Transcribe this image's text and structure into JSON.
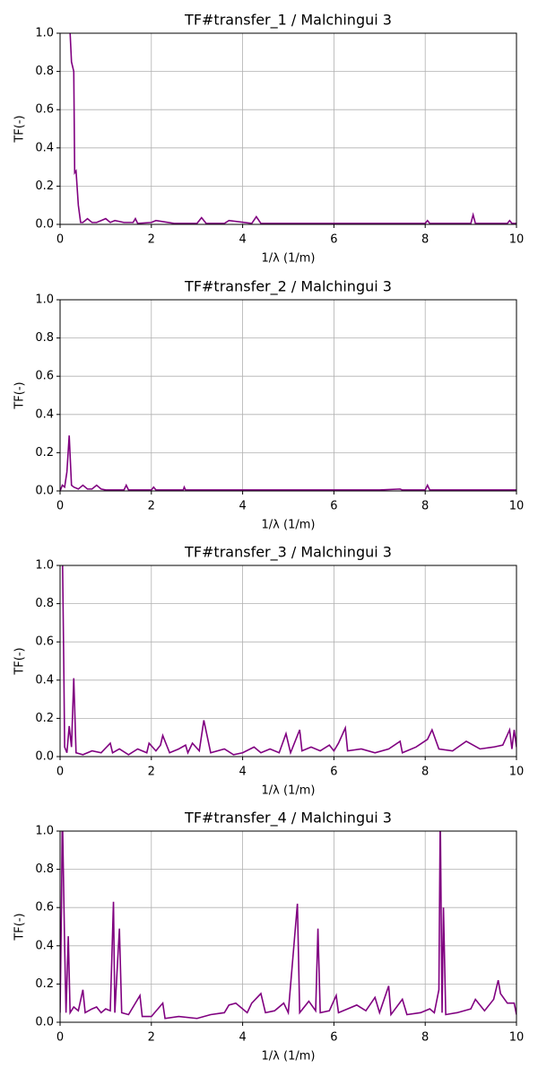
{
  "chart_data": [
    {
      "type": "line",
      "title": "TF#transfer_1 / Malchingui 3",
      "xlabel": "1/λ (1/m)",
      "ylabel": "TF(-)",
      "xlim": [
        0,
        10
      ],
      "ylim": [
        0,
        1
      ],
      "xticks": [
        0,
        2,
        4,
        6,
        8,
        10
      ],
      "yticks": [
        {
          "value": 0,
          "label": "0.0"
        },
        {
          "value": 0.2,
          "label": "0.2"
        },
        {
          "value": 0.4,
          "label": "0.4"
        },
        {
          "value": 0.6,
          "label": "0.6"
        },
        {
          "value": 0.8,
          "label": "0.8"
        },
        {
          "value": 1,
          "label": "1.0"
        }
      ],
      "grid": true,
      "x": [
        0.2,
        0.25,
        0.3,
        0.32,
        0.35,
        0.4,
        0.45,
        0.5,
        0.6,
        0.7,
        0.8,
        0.9,
        1.0,
        1.1,
        1.2,
        1.4,
        1.6,
        1.65,
        1.7,
        2.0,
        2.1,
        2.5,
        3.0,
        3.1,
        3.2,
        3.6,
        3.7,
        4.2,
        4.3,
        4.4,
        5.0,
        6.0,
        7.0,
        8.0,
        8.05,
        8.1,
        9.0,
        9.05,
        9.1,
        9.8,
        9.85,
        9.9,
        10.0
      ],
      "series": [
        {
          "color": "#800080",
          "values": [
            1.1,
            0.85,
            0.8,
            0.27,
            0.28,
            0.1,
            0.01,
            0.01,
            0.03,
            0.01,
            0.01,
            0.02,
            0.03,
            0.01,
            0.02,
            0.01,
            0.01,
            0.03,
            0.005,
            0.01,
            0.02,
            0.005,
            0.005,
            0.035,
            0.005,
            0.005,
            0.02,
            0.005,
            0.04,
            0.005,
            0.005,
            0.005,
            0.005,
            0.005,
            0.02,
            0.005,
            0.005,
            0.05,
            0.005,
            0.005,
            0.02,
            0.005,
            0.005
          ]
        }
      ]
    },
    {
      "type": "line",
      "title": "TF#transfer_2 / Malchingui 3",
      "xlabel": "1/λ (1/m)",
      "ylabel": "TF(-)",
      "xlim": [
        0,
        10
      ],
      "ylim": [
        0,
        1
      ],
      "xticks": [
        0,
        2,
        4,
        6,
        8,
        10
      ],
      "yticks": [
        {
          "value": 0,
          "label": "0.0"
        },
        {
          "value": 0.2,
          "label": "0.2"
        },
        {
          "value": 0.4,
          "label": "0.4"
        },
        {
          "value": 0.6,
          "label": "0.6"
        },
        {
          "value": 0.8,
          "label": "0.8"
        },
        {
          "value": 1,
          "label": "1.0"
        }
      ],
      "grid": true,
      "x": [
        0,
        0.05,
        0.1,
        0.15,
        0.2,
        0.25,
        0.3,
        0.4,
        0.5,
        0.6,
        0.7,
        0.8,
        0.9,
        1.0,
        1.4,
        1.45,
        1.5,
        2.0,
        2.05,
        2.1,
        2.7,
        2.72,
        2.75,
        3.5,
        4.5,
        5.0,
        6.0,
        7.0,
        7.45,
        7.5,
        8.0,
        8.05,
        8.1,
        9.0,
        10.0
      ],
      "series": [
        {
          "color": "#800080",
          "values": [
            0,
            0.03,
            0.02,
            0.1,
            0.29,
            0.03,
            0.02,
            0.01,
            0.03,
            0.01,
            0.01,
            0.03,
            0.01,
            0.005,
            0.005,
            0.03,
            0.005,
            0.005,
            0.02,
            0.005,
            0.005,
            0.02,
            0.005,
            0.005,
            0.005,
            0.005,
            0.005,
            0.005,
            0.01,
            0.005,
            0.005,
            0.03,
            0.005,
            0.005,
            0.005
          ]
        }
      ]
    },
    {
      "type": "line",
      "title": "TF#transfer_3 / Malchingui 3",
      "xlabel": "1/λ (1/m)",
      "ylabel": "TF(-)",
      "xlim": [
        0,
        10
      ],
      "ylim": [
        0,
        1
      ],
      "xticks": [
        0,
        2,
        4,
        6,
        8,
        10
      ],
      "yticks": [
        {
          "value": 0,
          "label": "0.0"
        },
        {
          "value": 0.2,
          "label": "0.2"
        },
        {
          "value": 0.4,
          "label": "0.4"
        },
        {
          "value": 0.6,
          "label": "0.6"
        },
        {
          "value": 0.8,
          "label": "0.8"
        },
        {
          "value": 1,
          "label": "1.0"
        }
      ],
      "grid": true,
      "x": [
        0.05,
        0.08,
        0.1,
        0.15,
        0.2,
        0.25,
        0.3,
        0.35,
        0.5,
        0.7,
        0.9,
        1.1,
        1.15,
        1.3,
        1.5,
        1.7,
        1.9,
        1.95,
        2.1,
        2.2,
        2.25,
        2.4,
        2.6,
        2.75,
        2.8,
        2.9,
        3.05,
        3.15,
        3.3,
        3.6,
        3.8,
        4.0,
        4.25,
        4.4,
        4.6,
        4.8,
        4.95,
        5.05,
        5.25,
        5.3,
        5.5,
        5.7,
        5.9,
        6.0,
        6.1,
        6.25,
        6.3,
        6.6,
        6.9,
        7.2,
        7.45,
        7.5,
        7.8,
        8.05,
        8.15,
        8.3,
        8.6,
        8.9,
        9.2,
        9.5,
        9.7,
        9.85,
        9.9,
        9.95,
        10.0
      ],
      "series": [
        {
          "color": "#800080",
          "values": [
            1.1,
            0.5,
            0.05,
            0.02,
            0.16,
            0.05,
            0.41,
            0.02,
            0.01,
            0.03,
            0.02,
            0.07,
            0.02,
            0.04,
            0.01,
            0.04,
            0.02,
            0.07,
            0.03,
            0.06,
            0.11,
            0.02,
            0.04,
            0.06,
            0.02,
            0.07,
            0.03,
            0.19,
            0.02,
            0.04,
            0.01,
            0.02,
            0.05,
            0.02,
            0.04,
            0.02,
            0.12,
            0.02,
            0.14,
            0.03,
            0.05,
            0.03,
            0.06,
            0.03,
            0.07,
            0.15,
            0.03,
            0.04,
            0.02,
            0.04,
            0.08,
            0.02,
            0.05,
            0.09,
            0.14,
            0.04,
            0.03,
            0.08,
            0.04,
            0.05,
            0.06,
            0.14,
            0.04,
            0.14,
            0.05
          ]
        }
      ]
    },
    {
      "type": "line",
      "title": "TF#transfer_4 / Malchingui 3",
      "xlabel": "1/λ (1/m)",
      "ylabel": "TF(-)",
      "xlim": [
        0,
        10
      ],
      "ylim": [
        0,
        1
      ],
      "xticks": [
        0,
        2,
        4,
        6,
        8,
        10
      ],
      "yticks": [
        {
          "value": 0,
          "label": "0.0"
        },
        {
          "value": 0.2,
          "label": "0.2"
        },
        {
          "value": 0.4,
          "label": "0.4"
        },
        {
          "value": 0.6,
          "label": "0.6"
        },
        {
          "value": 0.8,
          "label": "0.8"
        },
        {
          "value": 1,
          "label": "1.0"
        }
      ],
      "grid": true,
      "x": [
        0.0,
        0.03,
        0.05,
        0.1,
        0.13,
        0.18,
        0.22,
        0.3,
        0.4,
        0.5,
        0.55,
        0.7,
        0.8,
        0.9,
        1.0,
        1.1,
        1.17,
        1.2,
        1.3,
        1.35,
        1.5,
        1.75,
        1.8,
        2.0,
        2.25,
        2.3,
        2.6,
        3.0,
        3.3,
        3.6,
        3.7,
        3.85,
        4.1,
        4.2,
        4.4,
        4.5,
        4.7,
        4.9,
        5.0,
        5.2,
        5.25,
        5.45,
        5.6,
        5.65,
        5.7,
        5.9,
        6.05,
        6.1,
        6.3,
        6.5,
        6.7,
        6.9,
        7.0,
        7.2,
        7.25,
        7.5,
        7.6,
        7.9,
        8.1,
        8.2,
        8.3,
        8.33,
        8.37,
        8.4,
        8.45,
        8.7,
        9.0,
        9.1,
        9.3,
        9.5,
        9.6,
        9.65,
        9.8,
        9.95,
        10.0
      ],
      "series": [
        {
          "color": "#800080",
          "values": [
            0.05,
            0.6,
            1.1,
            0.4,
            0.05,
            0.45,
            0.05,
            0.08,
            0.06,
            0.17,
            0.05,
            0.07,
            0.08,
            0.05,
            0.07,
            0.06,
            0.63,
            0.05,
            0.49,
            0.05,
            0.04,
            0.14,
            0.03,
            0.03,
            0.1,
            0.02,
            0.03,
            0.02,
            0.04,
            0.05,
            0.09,
            0.1,
            0.05,
            0.1,
            0.15,
            0.05,
            0.06,
            0.1,
            0.05,
            0.62,
            0.05,
            0.11,
            0.06,
            0.49,
            0.05,
            0.06,
            0.14,
            0.05,
            0.07,
            0.09,
            0.06,
            0.13,
            0.05,
            0.19,
            0.04,
            0.12,
            0.04,
            0.05,
            0.07,
            0.05,
            0.17,
            1.1,
            0.05,
            0.6,
            0.04,
            0.05,
            0.07,
            0.12,
            0.06,
            0.12,
            0.22,
            0.15,
            0.1,
            0.1,
            0.04
          ]
        }
      ]
    }
  ]
}
